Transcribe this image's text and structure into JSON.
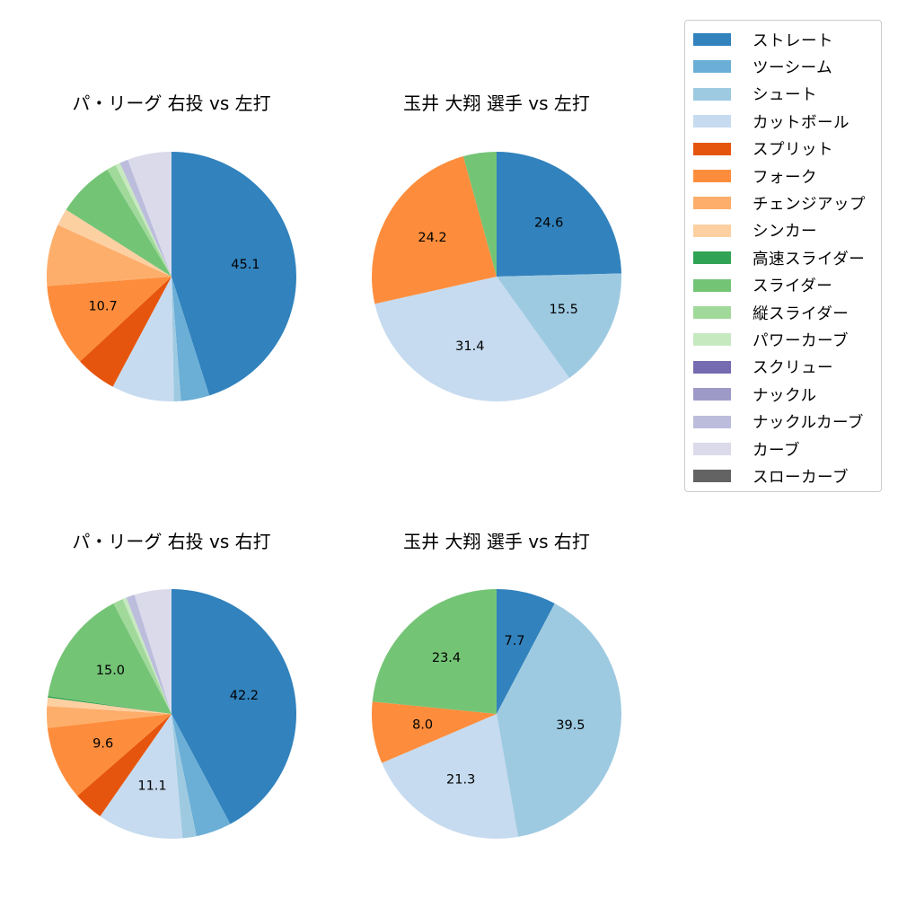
{
  "legend": {
    "items": [
      {
        "label": "ストレート",
        "color": "#3182bd"
      },
      {
        "label": "ツーシーム",
        "color": "#6baed6"
      },
      {
        "label": "シュート",
        "color": "#9ecae1"
      },
      {
        "label": "カットボール",
        "color": "#c6dbef"
      },
      {
        "label": "スプリット",
        "color": "#e6550d"
      },
      {
        "label": "フォーク",
        "color": "#fd8d3c"
      },
      {
        "label": "チェンジアップ",
        "color": "#fdae6b"
      },
      {
        "label": "シンカー",
        "color": "#fdd0a2"
      },
      {
        "label": "高速スライダー",
        "color": "#31a354"
      },
      {
        "label": "スライダー",
        "color": "#74c476"
      },
      {
        "label": "縦スライダー",
        "color": "#a1d99b"
      },
      {
        "label": "パワーカーブ",
        "color": "#c7e9c0"
      },
      {
        "label": "スクリュー",
        "color": "#756bb1"
      },
      {
        "label": "ナックル",
        "color": "#9e9ac8"
      },
      {
        "label": "ナックルカーブ",
        "color": "#bcbddc"
      },
      {
        "label": "カーブ",
        "color": "#dadaeb"
      },
      {
        "label": "スローカーブ",
        "color": "#636363"
      }
    ]
  },
  "panels": [
    {
      "title": "パ・リーグ 右投 vs 左打"
    },
    {
      "title": "玉井 大翔 選手 vs 左打"
    },
    {
      "title": "パ・リーグ 右投 vs 右打"
    },
    {
      "title": "玉井 大翔 選手 vs 右打"
    }
  ],
  "chart_data": [
    {
      "type": "pie",
      "title": "パ・リーグ 右投 vs 左打",
      "start_angle": 90,
      "direction": "clockwise",
      "label_threshold": 10,
      "categories": [
        "ストレート",
        "ツーシーム",
        "シュート",
        "カットボール",
        "スプリット",
        "フォーク",
        "チェンジアップ",
        "シンカー",
        "スライダー",
        "縦スライダー",
        "パワーカーブ",
        "ナックルカーブ",
        "カーブ"
      ],
      "values": [
        45.1,
        3.7,
        0.9,
        8.1,
        5.3,
        10.7,
        8.0,
        2.2,
        7.4,
        1.2,
        0.6,
        1.1,
        5.7
      ],
      "colors": [
        "#3182bd",
        "#6baed6",
        "#9ecae1",
        "#c6dbef",
        "#e6550d",
        "#fd8d3c",
        "#fdae6b",
        "#fdd0a2",
        "#74c476",
        "#a1d99b",
        "#c7e9c0",
        "#bcbddc",
        "#dadaeb"
      ],
      "labels_shown": [
        "45.1",
        "10.7"
      ]
    },
    {
      "type": "pie",
      "title": "玉井 大翔 選手 vs 左打",
      "start_angle": 90,
      "direction": "clockwise",
      "label_threshold": 10,
      "categories": [
        "ストレート",
        "シュート",
        "カットボール",
        "フォーク",
        "スライダー"
      ],
      "values": [
        24.6,
        15.5,
        31.4,
        24.2,
        4.3
      ],
      "colors": [
        "#3182bd",
        "#9ecae1",
        "#c6dbef",
        "#fd8d3c",
        "#74c476"
      ],
      "labels_shown": [
        "24.6",
        "15.5",
        "31.4",
        "24.2"
      ]
    },
    {
      "type": "pie",
      "title": "パ・リーグ 右投 vs 右打",
      "start_angle": 90,
      "direction": "clockwise",
      "label_threshold": 9,
      "categories": [
        "ストレート",
        "ツーシーム",
        "シュート",
        "カットボール",
        "スプリット",
        "フォーク",
        "チェンジアップ",
        "シンカー",
        "高速スライダー",
        "スライダー",
        "縦スライダー",
        "パワーカーブ",
        "ナックルカーブ",
        "カーブ"
      ],
      "values": [
        42.2,
        4.6,
        1.8,
        11.1,
        3.9,
        9.6,
        2.8,
        1.1,
        0.2,
        15.0,
        1.3,
        0.5,
        1.1,
        4.8
      ],
      "colors": [
        "#3182bd",
        "#6baed6",
        "#9ecae1",
        "#c6dbef",
        "#e6550d",
        "#fd8d3c",
        "#fdae6b",
        "#fdd0a2",
        "#31a354",
        "#74c476",
        "#a1d99b",
        "#c7e9c0",
        "#bcbddc",
        "#dadaeb"
      ],
      "labels_shown": [
        "42.2",
        "11.1",
        "9.6",
        "15.0"
      ]
    },
    {
      "type": "pie",
      "title": "玉井 大翔 選手 vs 右打",
      "start_angle": 90,
      "direction": "clockwise",
      "label_threshold": 5,
      "categories": [
        "ストレート",
        "シュート",
        "カットボール",
        "フォーク",
        "スライダー"
      ],
      "values": [
        7.7,
        39.5,
        21.3,
        8.0,
        23.4
      ],
      "colors": [
        "#3182bd",
        "#9ecae1",
        "#c6dbef",
        "#fd8d3c",
        "#74c476"
      ],
      "labels_shown": [
        "7.7",
        "39.5",
        "21.3",
        "8.0",
        "23.4"
      ]
    }
  ]
}
